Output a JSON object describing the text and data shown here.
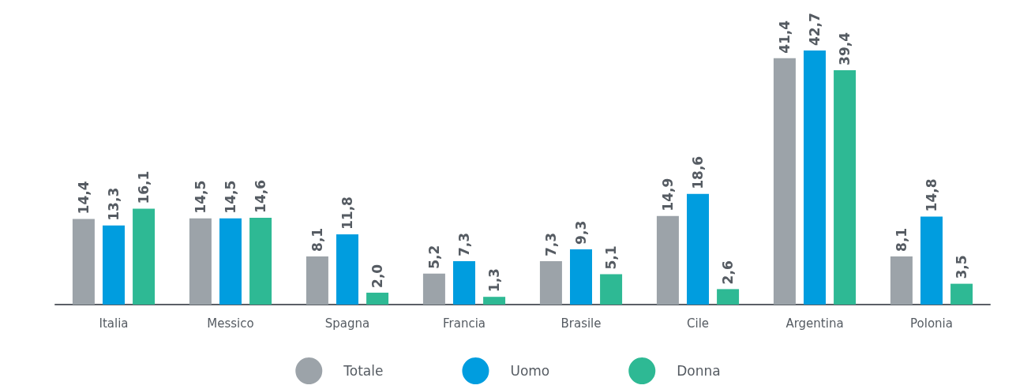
{
  "chart_data": {
    "type": "bar",
    "categories": [
      "Italia",
      "Messico",
      "Spagna",
      "Francia",
      "Brasile",
      "Cile",
      "Argentina",
      "Polonia"
    ],
    "series": [
      {
        "name": "Totale",
        "color": "#9ca3a9",
        "values": [
          14.4,
          14.5,
          8.1,
          5.2,
          7.3,
          14.9,
          41.4,
          8.1
        ],
        "value_labels": [
          "14,4",
          "14,5",
          "8,1",
          "5,2",
          "7,3",
          "14,9",
          "41,4",
          "8,1"
        ]
      },
      {
        "name": "Uomo",
        "color": "#009ddf",
        "values": [
          13.3,
          14.5,
          11.8,
          7.3,
          9.3,
          18.6,
          42.7,
          14.8
        ],
        "value_labels": [
          "13,3",
          "14,5",
          "11,8",
          "7,3",
          "9,3",
          "18,6",
          "42,7",
          "14,8"
        ]
      },
      {
        "name": "Donna",
        "color": "#2eb994",
        "values": [
          16.1,
          14.6,
          2.0,
          1.3,
          5.1,
          2.6,
          39.4,
          3.5
        ],
        "value_labels": [
          "16,1",
          "14,6",
          "2,0",
          "1,3",
          "5,1",
          "2,6",
          "39,4",
          "3,5"
        ]
      }
    ],
    "legend": "bottom"
  }
}
